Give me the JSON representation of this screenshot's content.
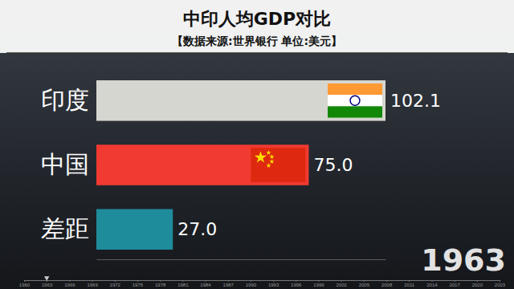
{
  "chart_data": {
    "type": "bar",
    "orientation": "horizontal",
    "title": "中印人均GDP对比",
    "subtitle": "【数据来源:世界银行 单位:美元】",
    "categories": [
      "印度",
      "中国",
      "差距"
    ],
    "values": [
      102.1,
      75.0,
      27.0
    ],
    "value_labels": [
      "102.1",
      "75.0",
      "27.0"
    ],
    "colors": [
      "#d6d6d0",
      "#f03a32",
      "#1f8c9c"
    ],
    "data_labels": true,
    "xlim": [
      0,
      102.1
    ],
    "xticks": [],
    "tick_labels": false,
    "grid": false,
    "year": 1963,
    "timeline": {
      "xlim": [
        1960,
        2023
      ],
      "xticks": [
        1960,
        1963,
        1966,
        1969,
        1972,
        1975,
        1978,
        1981,
        1984,
        1987,
        1990,
        1993,
        1996,
        1999,
        2002,
        2005,
        2008,
        2011,
        2014,
        2017,
        2020,
        2023
      ]
    }
  }
}
